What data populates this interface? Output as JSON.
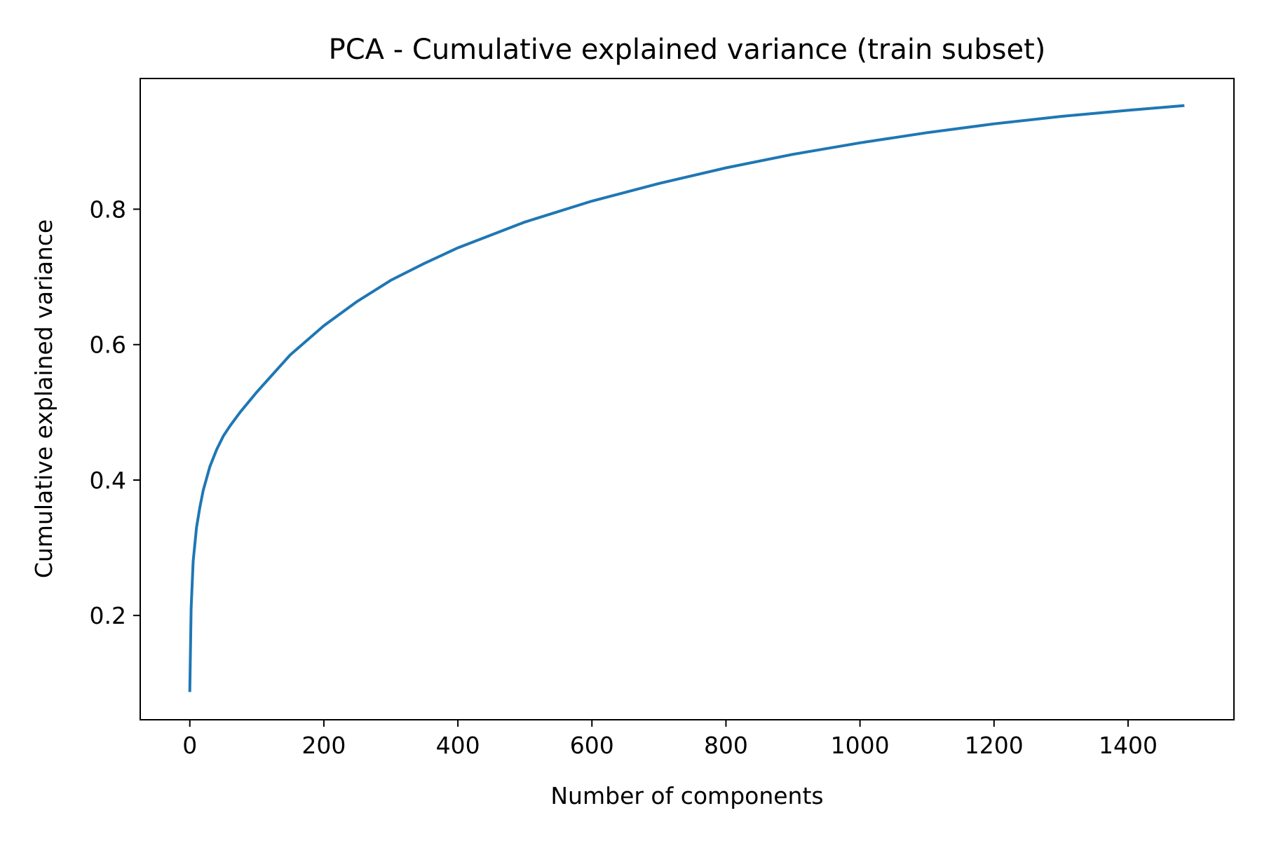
{
  "chart_data": {
    "type": "line",
    "title": "PCA - Cumulative explained variance (train subset)",
    "xlabel": "Number of components",
    "ylabel": "Cumulative explained variance",
    "xlim": [
      -74,
      1558
    ],
    "ylim": [
      0.046,
      0.993
    ],
    "xticks": [
      0,
      200,
      400,
      600,
      800,
      1000,
      1200,
      1400
    ],
    "yticks": [
      0.2,
      0.4,
      0.6,
      0.8
    ],
    "xtick_labels": [
      "0",
      "200",
      "400",
      "600",
      "800",
      "1000",
      "1200",
      "1400"
    ],
    "ytick_labels": [
      "0.2",
      "0.4",
      "0.6",
      "0.8"
    ],
    "grid": false,
    "legend": "none",
    "series": [
      {
        "color": "#1f77b4",
        "x": [
          0,
          2,
          5,
          10,
          15,
          20,
          30,
          40,
          50,
          60,
          75,
          100,
          150,
          200,
          250,
          300,
          350,
          400,
          500,
          600,
          700,
          800,
          900,
          1000,
          1100,
          1200,
          1300,
          1400,
          1484
        ],
        "y": [
          0.087,
          0.21,
          0.28,
          0.33,
          0.36,
          0.385,
          0.42,
          0.445,
          0.465,
          0.48,
          0.5,
          0.53,
          0.585,
          0.628,
          0.664,
          0.695,
          0.72,
          0.743,
          0.781,
          0.812,
          0.838,
          0.861,
          0.881,
          0.898,
          0.913,
          0.926,
          0.937,
          0.946,
          0.953
        ]
      }
    ]
  }
}
